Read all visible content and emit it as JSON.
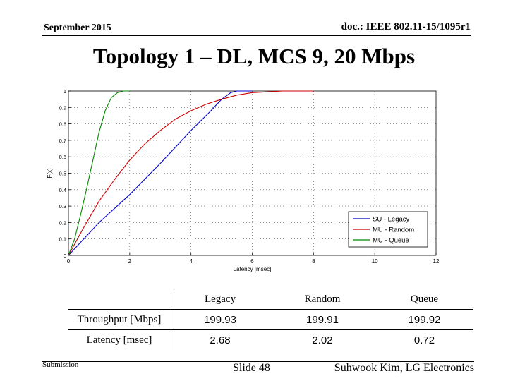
{
  "header": {
    "date": "September 2015",
    "doc": "doc.: IEEE 802.11-15/1095r1"
  },
  "title": "Topology 1 – DL, MCS 9, 20 Mbps",
  "chart_data": {
    "type": "line",
    "xlabel": "Latency [msec]",
    "ylabel": "F(x)",
    "xlim": [
      0,
      12
    ],
    "ylim": [
      0,
      1
    ],
    "xticks": [
      0,
      2,
      4,
      6,
      8,
      10,
      12
    ],
    "yticks": [
      0,
      0.1,
      0.2,
      0.3,
      0.4,
      0.5,
      0.6,
      0.7,
      0.8,
      0.9,
      1
    ],
    "grid": true,
    "legend_position": "bottom-right",
    "series": [
      {
        "name": "SU - Legacy",
        "color": "#0000cc",
        "x": [
          0,
          1,
          2,
          3,
          4,
          4.6,
          5.0,
          5.3,
          5.5,
          6.0
        ],
        "y": [
          0,
          0.2,
          0.37,
          0.56,
          0.76,
          0.87,
          0.95,
          0.99,
          1.0,
          1.0
        ]
      },
      {
        "name": "MU - Random",
        "color": "#cc0000",
        "x": [
          0,
          0.5,
          1,
          1.5,
          2,
          2.5,
          3,
          3.5,
          4,
          4.5,
          5,
          5.5,
          6,
          6.5,
          7,
          7.5,
          8
        ],
        "y": [
          0,
          0.17,
          0.33,
          0.46,
          0.58,
          0.68,
          0.76,
          0.83,
          0.88,
          0.92,
          0.95,
          0.975,
          0.99,
          0.995,
          1.0,
          1.0,
          1.0
        ]
      },
      {
        "name": "MU - Queue",
        "color": "#008800",
        "x": [
          0,
          0.2,
          0.4,
          0.6,
          0.8,
          1.0,
          1.2,
          1.4,
          1.6,
          1.8,
          2.0
        ],
        "y": [
          0,
          0.1,
          0.25,
          0.41,
          0.58,
          0.75,
          0.88,
          0.96,
          0.99,
          1.0,
          1.0
        ]
      }
    ]
  },
  "table": {
    "headers": [
      "",
      "Legacy",
      "Random",
      "Queue"
    ],
    "rows": [
      {
        "label": "Throughput [Mbps]",
        "values": [
          "199.93",
          "199.91",
          "199.92"
        ]
      },
      {
        "label": "Latency [msec]",
        "values": [
          "2.68",
          "2.02",
          "0.72"
        ]
      }
    ]
  },
  "footer": {
    "submission": "Submission",
    "slide": "Slide 48",
    "author": "Suhwook Kim, LG Electronics"
  }
}
